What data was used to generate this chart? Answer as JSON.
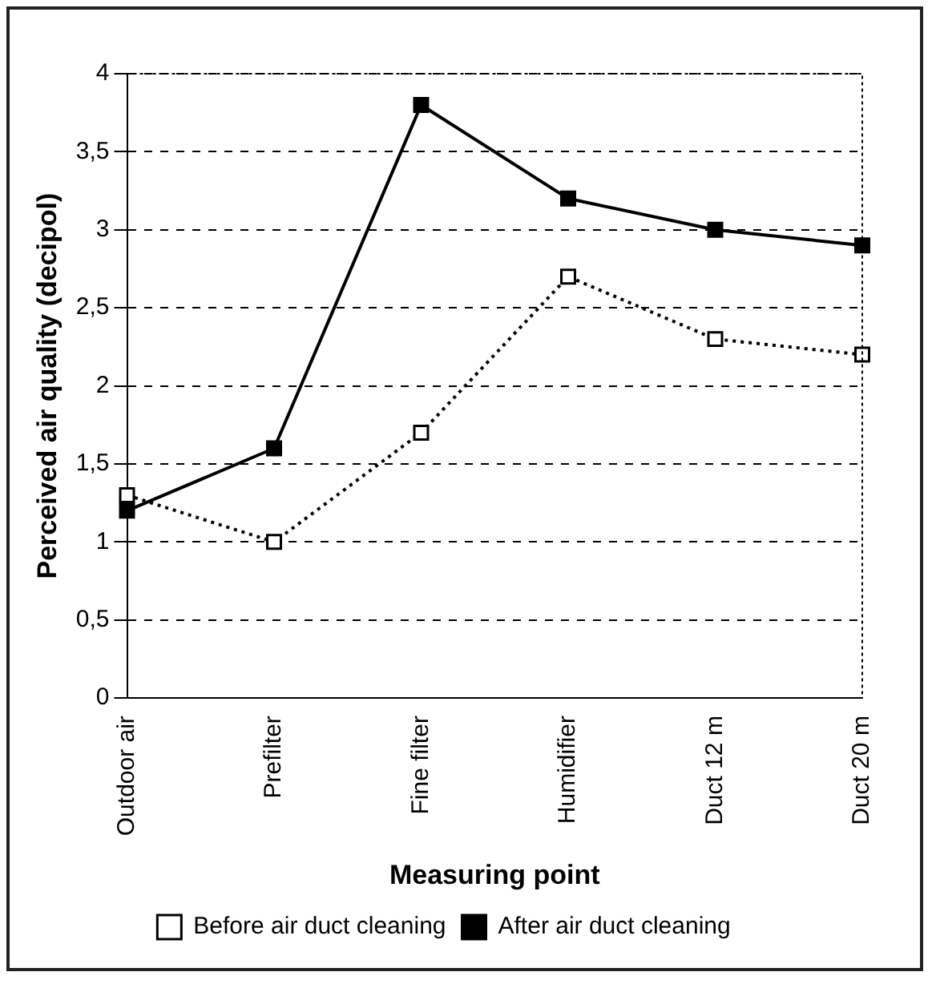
{
  "chart_data": {
    "type": "line",
    "xlabel": "Measuring point",
    "ylabel": "Perceived air quality (decipol)",
    "categories": [
      "Outdoor air",
      "Prefilter",
      "Fine filter",
      "Humidifier",
      "Duct 12 m",
      "Duct 20 m"
    ],
    "series": [
      {
        "name": "Before air duct cleaning",
        "color": "#000000",
        "values": [
          1.3,
          1.0,
          1.7,
          2.7,
          2.3,
          2.2
        ],
        "line_style": "dotted"
      },
      {
        "name": "After air duct cleaning",
        "color": "#000000",
        "values": [
          1.2,
          1.6,
          3.8,
          3.2,
          3.0,
          2.9
        ],
        "line_style": "solid"
      }
    ],
    "ylim": [
      0,
      4
    ],
    "yticks": [
      0,
      {
        "value": 0.5,
        "label": "0,5"
      },
      1,
      {
        "value": 1.5,
        "label": "1,5"
      },
      2,
      {
        "value": 2.5,
        "label": "2,5"
      },
      3,
      {
        "value": 3.5,
        "label": "3,5"
      },
      4
    ],
    "grid": "y",
    "legend": "bottom",
    "marker": "square"
  }
}
